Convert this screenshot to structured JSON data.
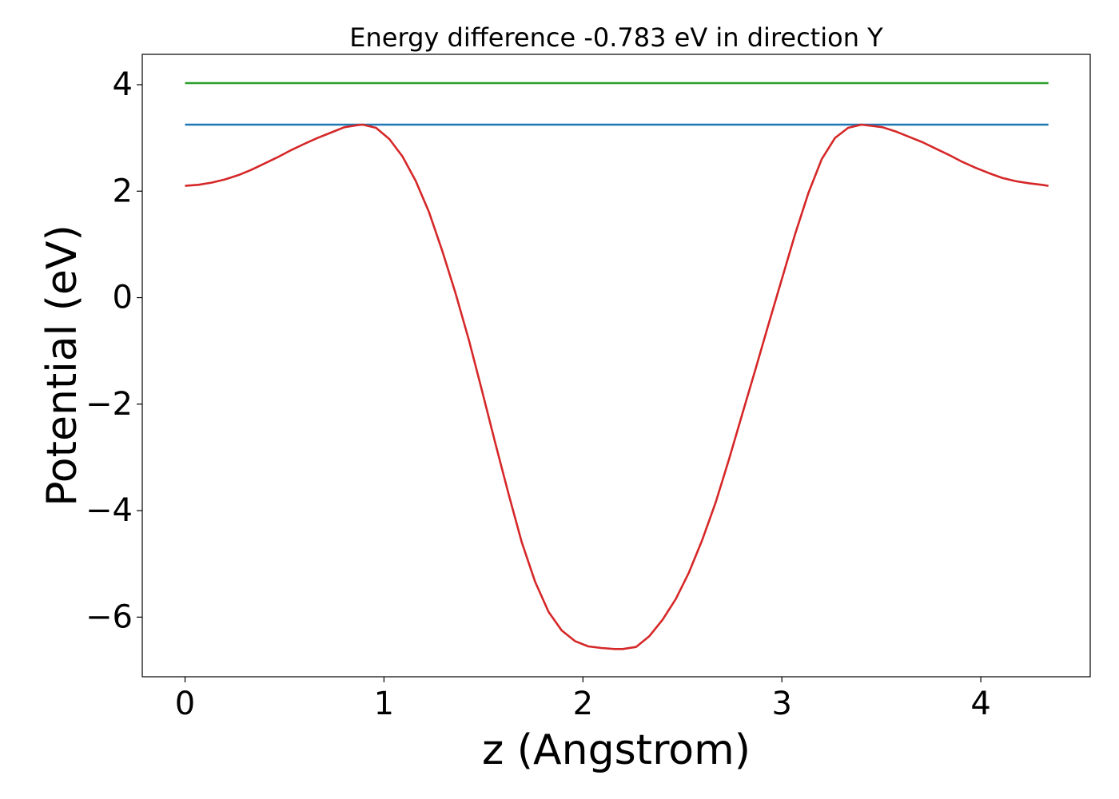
{
  "chart_data": {
    "type": "line",
    "title": "Energy difference -0.783 eV in direction Y",
    "xlabel": "z (Angstrom)",
    "ylabel": "Potential (eV)",
    "xlim": [
      -0.215,
      4.55
    ],
    "ylim": [
      -7.12,
      4.57
    ],
    "xticks": [
      0,
      1,
      2,
      3,
      4
    ],
    "xtick_labels": [
      "0",
      "1",
      "2",
      "3",
      "4"
    ],
    "yticks": [
      -6,
      -4,
      -2,
      0,
      2,
      4
    ],
    "ytick_labels": [
      "−6",
      "−4",
      "−2",
      "0",
      "2",
      "4"
    ],
    "grid": false,
    "series": [
      {
        "color": "#2ca02c",
        "x": [
          0,
          4.34
        ],
        "y": [
          4.03,
          4.03
        ]
      },
      {
        "color": "#1f77b4",
        "x": [
          0,
          4.34
        ],
        "y": [
          3.25,
          3.25
        ]
      },
      {
        "color": "#d62728",
        "x": [
          0,
          0.067,
          0.133,
          0.2,
          0.267,
          0.333,
          0.4,
          0.467,
          0.533,
          0.6,
          0.667,
          0.733,
          0.8,
          0.867,
          0.893,
          0.96,
          1.027,
          1.093,
          1.16,
          1.227,
          1.293,
          1.36,
          1.427,
          1.493,
          1.56,
          1.627,
          1.693,
          1.76,
          1.827,
          1.893,
          1.96,
          2.027,
          2.093,
          2.16,
          2.2,
          2.267,
          2.333,
          2.4,
          2.467,
          2.533,
          2.6,
          2.667,
          2.733,
          2.8,
          2.867,
          2.933,
          3.0,
          3.067,
          3.133,
          3.2,
          3.267,
          3.333,
          3.4,
          3.467,
          3.507,
          3.573,
          3.64,
          3.707,
          3.773,
          3.84,
          3.907,
          3.973,
          4.04,
          4.107,
          4.173,
          4.24,
          4.307,
          4.34
        ],
        "y": [
          2.1,
          2.12,
          2.16,
          2.22,
          2.3,
          2.4,
          2.52,
          2.64,
          2.77,
          2.89,
          3.0,
          3.1,
          3.2,
          3.24,
          3.25,
          3.19,
          2.98,
          2.65,
          2.19,
          1.6,
          0.88,
          0.08,
          -0.8,
          -1.75,
          -2.74,
          -3.7,
          -4.6,
          -5.34,
          -5.9,
          -6.25,
          -6.45,
          -6.55,
          -6.58,
          -6.6,
          -6.6,
          -6.56,
          -6.36,
          -6.05,
          -5.66,
          -5.16,
          -4.55,
          -3.85,
          -3.05,
          -2.2,
          -1.35,
          -0.5,
          0.35,
          1.2,
          1.96,
          2.6,
          3.0,
          3.19,
          3.25,
          3.22,
          3.2,
          3.12,
          3.02,
          2.92,
          2.8,
          2.68,
          2.55,
          2.44,
          2.34,
          2.25,
          2.19,
          2.15,
          2.12,
          2.1
        ]
      }
    ]
  }
}
